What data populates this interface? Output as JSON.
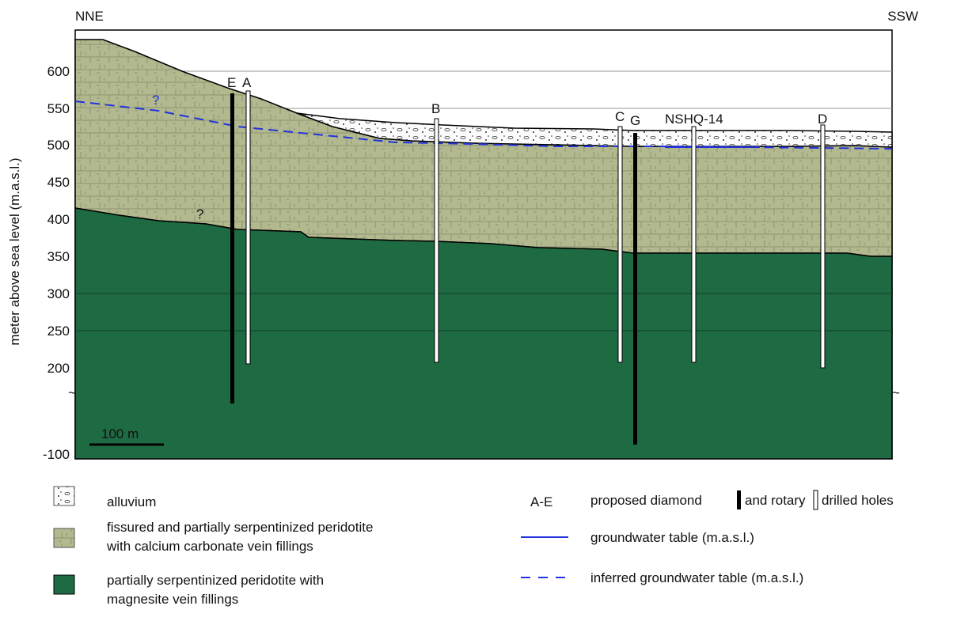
{
  "orientation": {
    "left": "NNE",
    "right": "SSW"
  },
  "y_axis": {
    "label": "meter above sea level (m.a.s.l.)",
    "ticks": [
      "600",
      "550",
      "500",
      "450",
      "400",
      "350",
      "300",
      "250",
      "200",
      "-100"
    ]
  },
  "scale_bar": "100 m",
  "boreholes": [
    "E",
    "A",
    "B",
    "C",
    "G",
    "NSHQ-14",
    "D"
  ],
  "uncertain_marks": [
    "?",
    "?"
  ],
  "legend": {
    "alluvium": "alluvium",
    "fissured_line1": "fissured and partially serpentinized peridotite",
    "fissured_line2": "with calcium carbonate vein fillings",
    "peridotite_line1": "partially serpentinized peridotite with",
    "peridotite_line2": "magnesite vein fillings",
    "holes_key": "A-E",
    "holes_text1": "proposed diamond",
    "holes_text2": "and rotary",
    "holes_text3": "drilled holes",
    "groundwater": "groundwater table (m.a.s.l.)",
    "inferred_groundwater": "inferred groundwater table (m.a.s.l.)"
  }
}
